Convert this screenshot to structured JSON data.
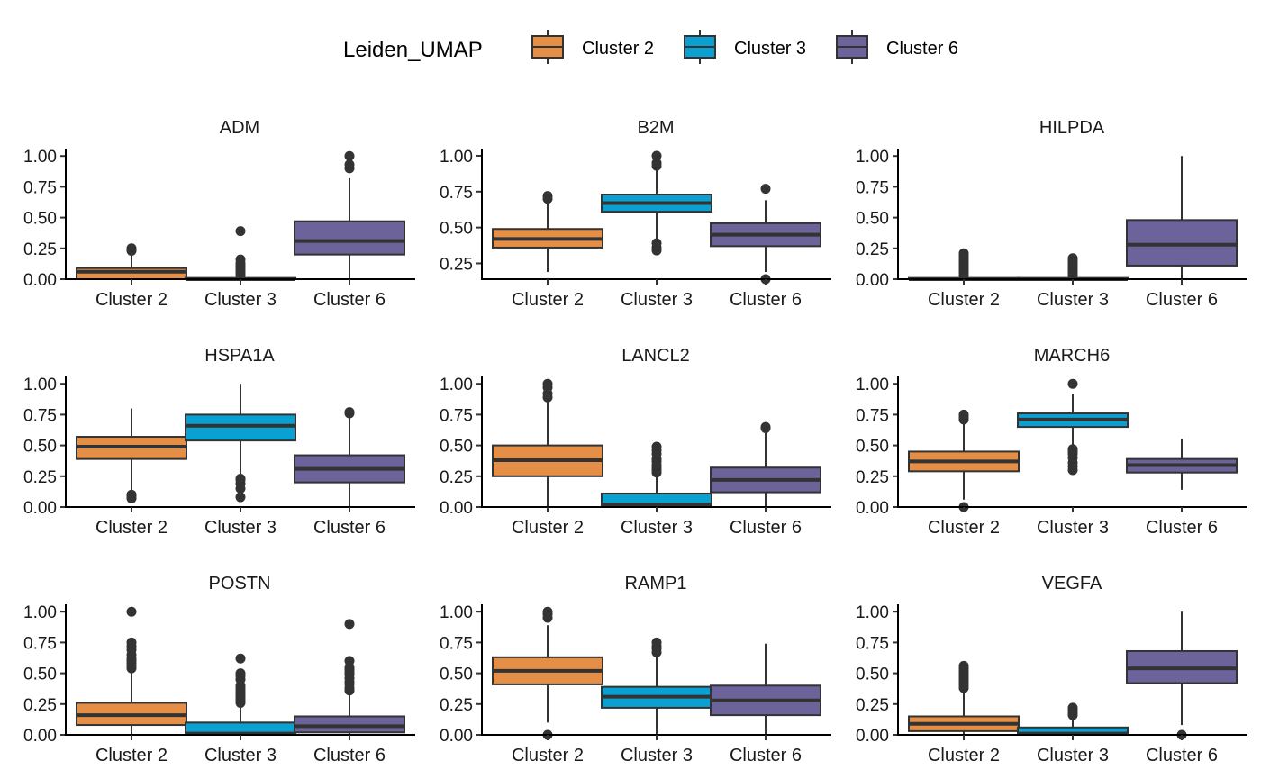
{
  "legend": {
    "title": "Leiden_UMAP",
    "entries": [
      {
        "label": "Cluster 2",
        "color": "#E58E45"
      },
      {
        "label": "Cluster 3",
        "color": "#0AA0D2"
      },
      {
        "label": "Cluster 6",
        "color": "#6B6399"
      }
    ]
  },
  "chart_data": [
    {
      "type": "box",
      "title": "ADM",
      "categories": [
        "Cluster 2",
        "Cluster 3",
        "Cluster 6"
      ],
      "ylim": [
        0,
        1.06
      ],
      "yticks": [
        "0.00",
        "0.25",
        "0.50",
        "0.75",
        "1.00"
      ],
      "grid": false,
      "boxes": [
        {
          "whisker_low": 0,
          "q1": 0,
          "median": 0.06,
          "q3": 0.09,
          "whisker_high": 0.2,
          "outliers": [
            0.23,
            0.245,
            0.25
          ]
        },
        {
          "whisker_low": 0,
          "q1": 0,
          "median": 0,
          "q3": 0.01,
          "whisker_high": 0.02,
          "outliers": [
            0.03,
            0.05,
            0.07,
            0.09,
            0.11,
            0.13,
            0.16,
            0.39
          ]
        },
        {
          "whisker_low": 0,
          "q1": 0.2,
          "median": 0.31,
          "q3": 0.47,
          "whisker_high": 0.82,
          "outliers": [
            0.9,
            0.93,
            1.0
          ]
        }
      ]
    },
    {
      "type": "box",
      "title": "B2M",
      "categories": [
        "Cluster 2",
        "Cluster 3",
        "Cluster 6"
      ],
      "ylim": [
        0.14,
        1.05
      ],
      "yticks": [
        "0.25",
        "0.50",
        "0.75",
        "1.00"
      ],
      "grid": false,
      "boxes": [
        {
          "whisker_low": 0.19,
          "q1": 0.36,
          "median": 0.42,
          "q3": 0.49,
          "whisker_high": 0.68,
          "outliers": [
            0.7,
            0.72
          ]
        },
        {
          "whisker_low": 0.41,
          "q1": 0.61,
          "median": 0.67,
          "q3": 0.73,
          "whisker_high": 0.9,
          "outliers": [
            0.34,
            0.36,
            0.39,
            0.93,
            0.95,
            1.0
          ]
        },
        {
          "whisker_low": 0.19,
          "q1": 0.37,
          "median": 0.45,
          "q3": 0.53,
          "whisker_high": 0.69,
          "outliers": [
            0.14,
            0.77
          ]
        }
      ]
    },
    {
      "type": "box",
      "title": "HILPDA",
      "categories": [
        "Cluster 2",
        "Cluster 3",
        "Cluster 6"
      ],
      "ylim": [
        0,
        1.06
      ],
      "yticks": [
        "0.00",
        "0.25",
        "0.50",
        "0.75",
        "1.00"
      ],
      "grid": false,
      "boxes": [
        {
          "whisker_low": 0,
          "q1": 0,
          "median": 0,
          "q3": 0.01,
          "whisker_high": 0.02,
          "outliers": [
            0.03,
            0.05,
            0.07,
            0.09,
            0.11,
            0.13,
            0.15,
            0.17,
            0.19,
            0.21
          ]
        },
        {
          "whisker_low": 0,
          "q1": 0,
          "median": 0,
          "q3": 0.01,
          "whisker_high": 0.02,
          "outliers": [
            0.03,
            0.05,
            0.07,
            0.09,
            0.11,
            0.13,
            0.15,
            0.17
          ]
        },
        {
          "whisker_low": 0,
          "q1": 0.11,
          "median": 0.28,
          "q3": 0.48,
          "whisker_high": 1.0,
          "outliers": []
        }
      ]
    },
    {
      "type": "box",
      "title": "HSPA1A",
      "categories": [
        "Cluster 2",
        "Cluster 3",
        "Cluster 6"
      ],
      "ylim": [
        0,
        1.06
      ],
      "yticks": [
        "0.00",
        "0.25",
        "0.50",
        "0.75",
        "1.00"
      ],
      "grid": false,
      "boxes": [
        {
          "whisker_low": 0.12,
          "q1": 0.39,
          "median": 0.49,
          "q3": 0.57,
          "whisker_high": 0.8,
          "outliers": [
            0.07,
            0.09,
            0.1
          ]
        },
        {
          "whisker_low": 0.25,
          "q1": 0.54,
          "median": 0.66,
          "q3": 0.75,
          "whisker_high": 1.0,
          "outliers": [
            0.08,
            0.15,
            0.19,
            0.22,
            0.23
          ]
        },
        {
          "whisker_low": 0,
          "q1": 0.2,
          "median": 0.31,
          "q3": 0.42,
          "whisker_high": 0.74,
          "outliers": [
            0.76,
            0.77
          ]
        }
      ]
    },
    {
      "type": "box",
      "title": "LANCL2",
      "categories": [
        "Cluster 2",
        "Cluster 3",
        "Cluster 6"
      ],
      "ylim": [
        0,
        1.06
      ],
      "yticks": [
        "0.00",
        "0.25",
        "0.50",
        "0.75",
        "1.00"
      ],
      "grid": false,
      "boxes": [
        {
          "whisker_low": 0,
          "q1": 0.25,
          "median": 0.38,
          "q3": 0.5,
          "whisker_high": 0.86,
          "outliers": [
            0.89,
            0.92,
            0.97,
            1.0
          ]
        },
        {
          "whisker_low": 0,
          "q1": 0,
          "median": 0.02,
          "q3": 0.11,
          "whisker_high": 0.25,
          "outliers": [
            0.28,
            0.3,
            0.32,
            0.34,
            0.37,
            0.39,
            0.43,
            0.46,
            0.49
          ]
        },
        {
          "whisker_low": 0,
          "q1": 0.12,
          "median": 0.22,
          "q3": 0.32,
          "whisker_high": 0.6,
          "outliers": [
            0.64,
            0.65
          ]
        }
      ]
    },
    {
      "type": "box",
      "title": "MARCH6",
      "categories": [
        "Cluster 2",
        "Cluster 3",
        "Cluster 6"
      ],
      "ylim": [
        0,
        1.06
      ],
      "yticks": [
        "0.00",
        "0.25",
        "0.50",
        "0.75",
        "1.00"
      ],
      "grid": false,
      "boxes": [
        {
          "whisker_low": 0.06,
          "q1": 0.29,
          "median": 0.37,
          "q3": 0.45,
          "whisker_high": 0.69,
          "outliers": [
            0.0,
            0.71,
            0.73,
            0.75
          ]
        },
        {
          "whisker_low": 0.49,
          "q1": 0.65,
          "median": 0.71,
          "q3": 0.76,
          "whisker_high": 0.92,
          "outliers": [
            0.3,
            0.33,
            0.36,
            0.4,
            0.43,
            0.45,
            0.47,
            1.0
          ]
        },
        {
          "whisker_low": 0.14,
          "q1": 0.28,
          "median": 0.34,
          "q3": 0.39,
          "whisker_high": 0.55,
          "outliers": []
        }
      ]
    },
    {
      "type": "box",
      "title": "POSTN",
      "categories": [
        "Cluster 2",
        "Cluster 3",
        "Cluster 6"
      ],
      "ylim": [
        0,
        1.06
      ],
      "yticks": [
        "0.00",
        "0.25",
        "0.50",
        "0.75",
        "1.00"
      ],
      "grid": false,
      "boxes": [
        {
          "whisker_low": 0,
          "q1": 0.08,
          "median": 0.16,
          "q3": 0.26,
          "whisker_high": 0.52,
          "outliers": [
            0.54,
            0.56,
            0.58,
            0.6,
            0.62,
            0.65,
            0.69,
            0.72,
            0.75,
            1.0
          ]
        },
        {
          "whisker_low": 0,
          "q1": 0,
          "median": 0.01,
          "q3": 0.1,
          "whisker_high": 0.24,
          "outliers": [
            0.26,
            0.28,
            0.3,
            0.32,
            0.34,
            0.36,
            0.38,
            0.4,
            0.45,
            0.48,
            0.5,
            0.62
          ]
        },
        {
          "whisker_low": 0,
          "q1": 0.02,
          "median": 0.07,
          "q3": 0.15,
          "whisker_high": 0.33,
          "outliers": [
            0.36,
            0.38,
            0.41,
            0.43,
            0.46,
            0.49,
            0.51,
            0.53,
            0.55,
            0.6,
            0.9
          ]
        }
      ]
    },
    {
      "type": "box",
      "title": "RAMP1",
      "categories": [
        "Cluster 2",
        "Cluster 3",
        "Cluster 6"
      ],
      "ylim": [
        0,
        1.06
      ],
      "yticks": [
        "0.00",
        "0.25",
        "0.50",
        "0.75",
        "1.00"
      ],
      "grid": false,
      "boxes": [
        {
          "whisker_low": 0.1,
          "q1": 0.41,
          "median": 0.52,
          "q3": 0.63,
          "whisker_high": 0.89,
          "outliers": [
            0.0,
            0.95,
            0.98,
            1.0
          ]
        },
        {
          "whisker_low": 0,
          "q1": 0.22,
          "median": 0.31,
          "q3": 0.39,
          "whisker_high": 0.64,
          "outliers": [
            0.67,
            0.7,
            0.72,
            0.75
          ]
        },
        {
          "whisker_low": 0,
          "q1": 0.16,
          "median": 0.28,
          "q3": 0.4,
          "whisker_high": 0.74,
          "outliers": []
        }
      ]
    },
    {
      "type": "box",
      "title": "VEGFA",
      "categories": [
        "Cluster 2",
        "Cluster 3",
        "Cluster 6"
      ],
      "ylim": [
        0,
        1.06
      ],
      "yticks": [
        "0.00",
        "0.25",
        "0.50",
        "0.75",
        "1.00"
      ],
      "grid": false,
      "boxes": [
        {
          "whisker_low": 0,
          "q1": 0.03,
          "median": 0.09,
          "q3": 0.15,
          "whisker_high": 0.36,
          "outliers": [
            0.38,
            0.4,
            0.42,
            0.44,
            0.46,
            0.48,
            0.5,
            0.52,
            0.54,
            0.56
          ]
        },
        {
          "whisker_low": 0,
          "q1": 0,
          "median": 0.01,
          "q3": 0.06,
          "whisker_high": 0.14,
          "outliers": [
            0.16,
            0.18,
            0.2,
            0.22
          ]
        },
        {
          "whisker_low": 0.08,
          "q1": 0.42,
          "median": 0.54,
          "q3": 0.68,
          "whisker_high": 1.0,
          "outliers": [
            0.0
          ]
        }
      ]
    }
  ]
}
